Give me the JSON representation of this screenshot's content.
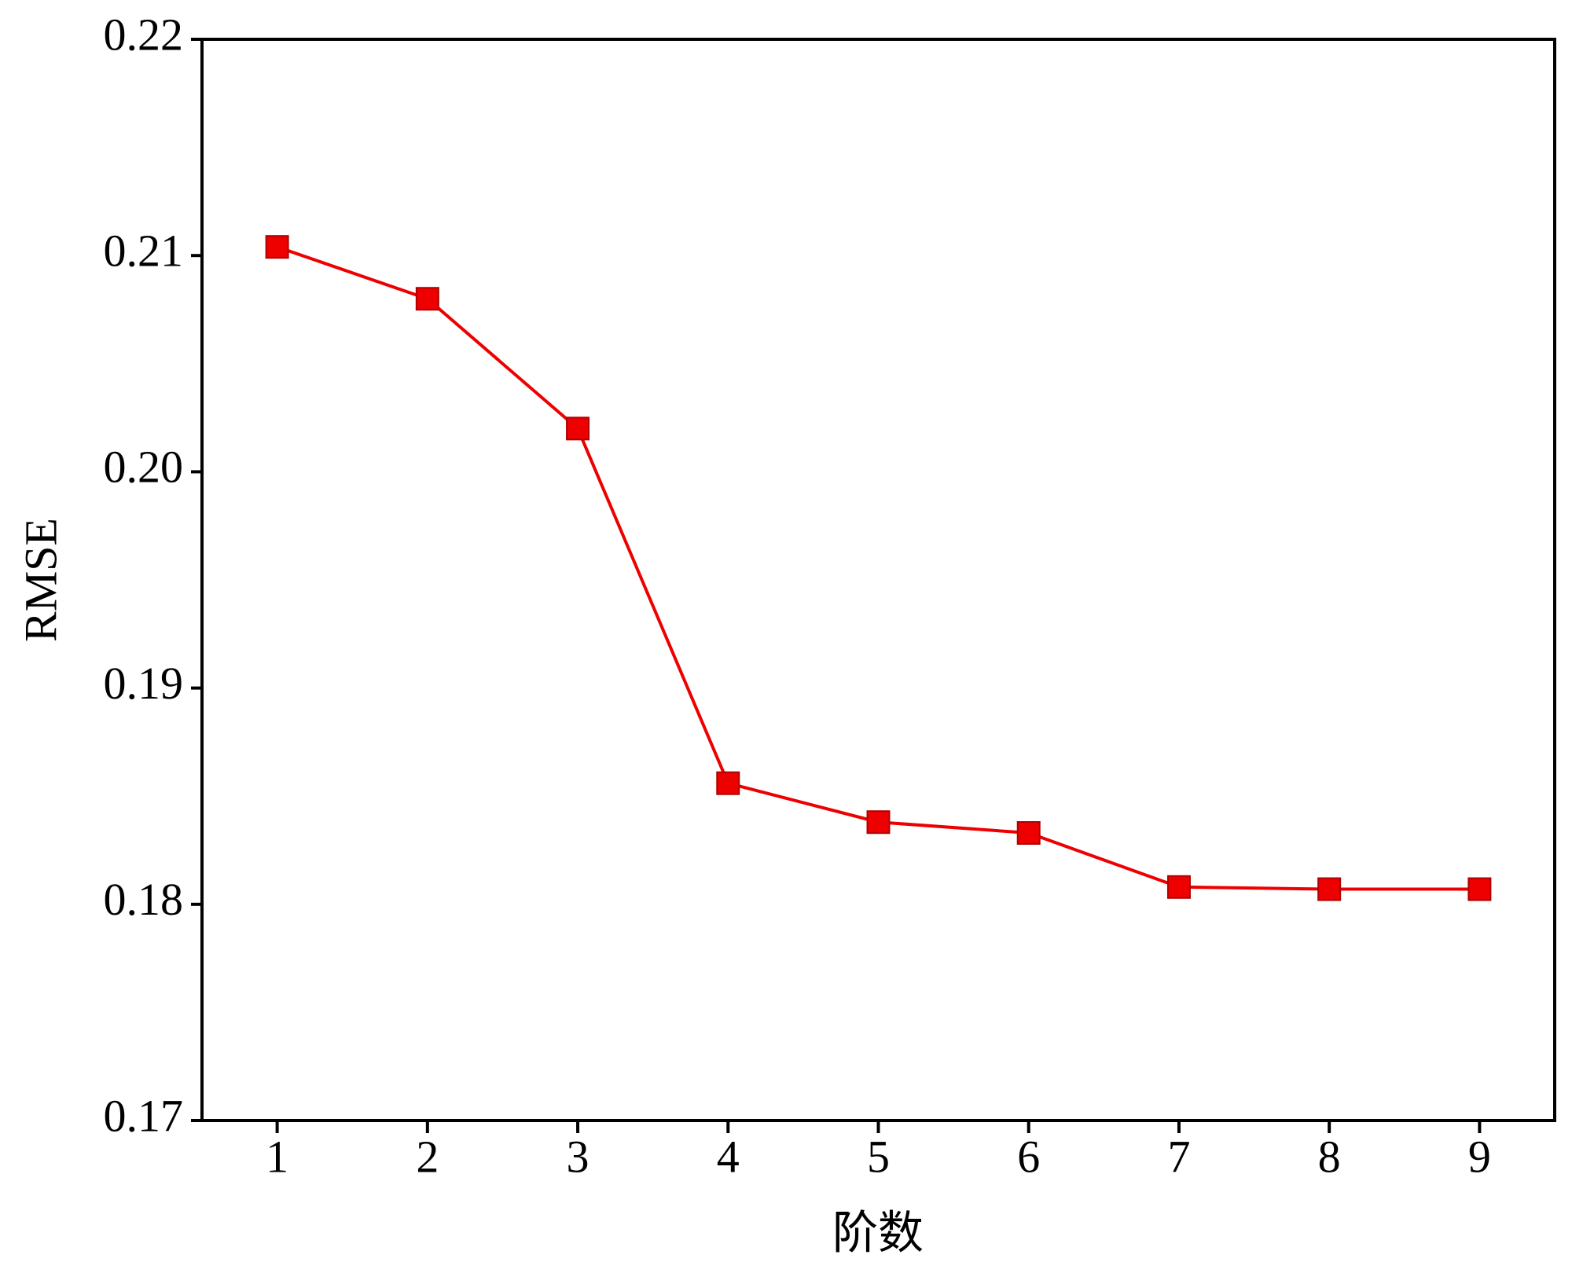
{
  "chart_data": {
    "type": "line",
    "x_label": "阶数",
    "y_label": "RMSE",
    "x": [
      1,
      2,
      3,
      4,
      5,
      6,
      7,
      8,
      9
    ],
    "series": [
      {
        "color": "#ee0000",
        "values": [
          0.2104,
          0.208,
          0.202,
          0.1856,
          0.1838,
          0.1833,
          0.1808,
          0.1807,
          0.1807
        ]
      }
    ],
    "xlim": [
      0.5,
      9.5
    ],
    "xticks": [
      1,
      2,
      3,
      4,
      5,
      6,
      7,
      8,
      9
    ],
    "ylim": [
      0.17,
      0.22
    ],
    "yticks": [
      0.17,
      0.18,
      0.19,
      {
        "value": 0.2,
        "label": "0.20"
      },
      0.21,
      0.22
    ],
    "grid": false,
    "marker": "square"
  }
}
